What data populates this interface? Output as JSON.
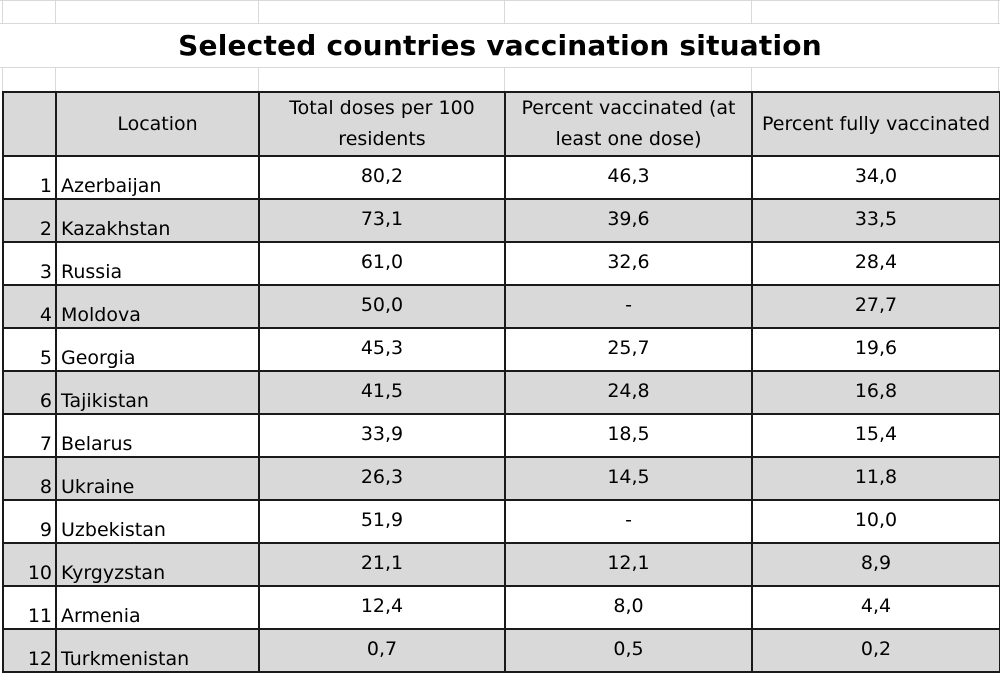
{
  "sheet": {
    "title": "Selected countries vaccination situation"
  },
  "table": {
    "headers": {
      "index": "",
      "location": "Location",
      "total_doses": "Total doses per 100 residents",
      "percent_one_dose": "Percent vaccinated (at least one dose)",
      "percent_fully": "Percent fully vaccinated"
    },
    "rows": [
      {
        "n": "1",
        "location": "Azerbaijan",
        "total_doses": "80,2",
        "percent_one_dose": "46,3",
        "percent_fully": "34,0"
      },
      {
        "n": "2",
        "location": "Kazakhstan",
        "total_doses": "73,1",
        "percent_one_dose": "39,6",
        "percent_fully": "33,5"
      },
      {
        "n": "3",
        "location": "Russia",
        "total_doses": "61,0",
        "percent_one_dose": "32,6",
        "percent_fully": "28,4"
      },
      {
        "n": "4",
        "location": "Moldova",
        "total_doses": "50,0",
        "percent_one_dose": "-",
        "percent_fully": "27,7"
      },
      {
        "n": "5",
        "location": "Georgia",
        "total_doses": "45,3",
        "percent_one_dose": "25,7",
        "percent_fully": "19,6"
      },
      {
        "n": "6",
        "location": "Tajikistan",
        "total_doses": "41,5",
        "percent_one_dose": "24,8",
        "percent_fully": "16,8"
      },
      {
        "n": "7",
        "location": "Belarus",
        "total_doses": "33,9",
        "percent_one_dose": "18,5",
        "percent_fully": "15,4"
      },
      {
        "n": "8",
        "location": "Ukraine",
        "total_doses": "26,3",
        "percent_one_dose": "14,5",
        "percent_fully": "11,8"
      },
      {
        "n": "9",
        "location": "Uzbekistan",
        "total_doses": "51,9",
        "percent_one_dose": "-",
        "percent_fully": "10,0"
      },
      {
        "n": "10",
        "location": "Kyrgyzstan",
        "total_doses": "21,1",
        "percent_one_dose": "12,1",
        "percent_fully": "8,9"
      },
      {
        "n": "11",
        "location": "Armenia",
        "total_doses": "12,4",
        "percent_one_dose": "8,0",
        "percent_fully": "4,4"
      },
      {
        "n": "12",
        "location": "Turkmenistan",
        "total_doses": "0,7",
        "percent_one_dose": "0,5",
        "percent_fully": "0,2"
      }
    ]
  },
  "colors": {
    "header_fill": "#d9d9d9",
    "band_fill": "#d9d9d9",
    "border": "#1a1a1a",
    "gridline": "#d9d9d9"
  }
}
